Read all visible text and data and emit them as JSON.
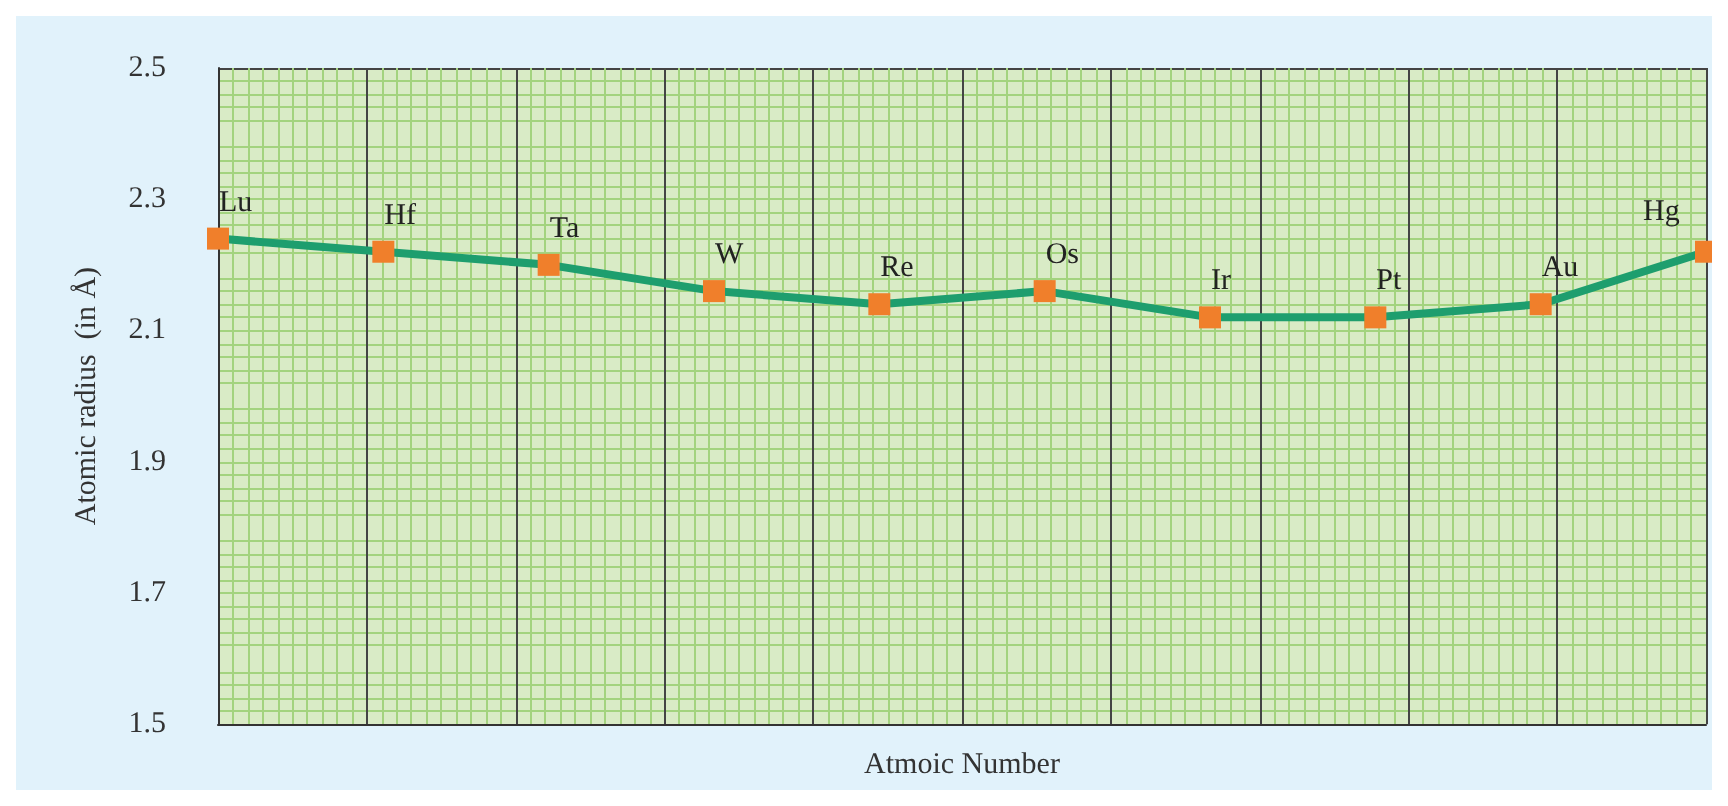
{
  "chart_data": {
    "type": "line",
    "xlabel": "Atmoic Number",
    "ylabel": "Atomic radius  (in Å)",
    "categories": [
      null,
      null,
      null,
      null,
      null,
      null,
      null,
      null,
      null,
      null
    ],
    "series": [
      {
        "color": "#1e9e6e",
        "values": [
          2.24,
          2.22,
          2.2,
          2.16,
          2.14,
          2.16,
          2.12,
          2.12,
          2.14,
          2.22
        ],
        "value_labels": [
          "Lu",
          "Hf",
          "Ta",
          "W",
          "Re",
          "Os",
          "Ir",
          "Pt",
          "Au",
          "Hg"
        ]
      }
    ],
    "marker": "square",
    "ylim": [
      1.5,
      2.5
    ],
    "yticks": [
      1.5,
      1.7,
      1.9,
      2.1,
      2.3,
      2.5
    ],
    "grid": true
  }
}
